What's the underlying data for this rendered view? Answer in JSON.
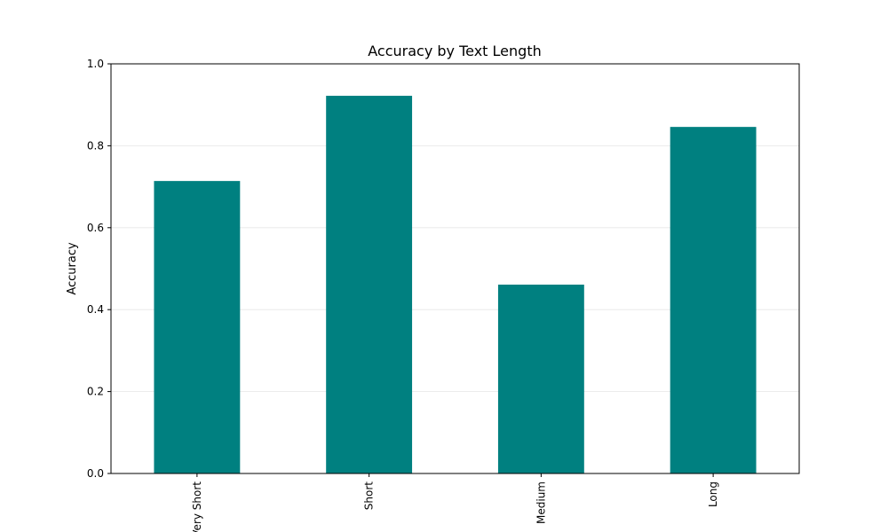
{
  "chart_data": {
    "type": "bar",
    "title": "Accuracy by Text Length",
    "xlabel": "",
    "ylabel": "Accuracy",
    "categories": [
      "Very Short",
      "Short",
      "Medium",
      "Long"
    ],
    "values": [
      0.714,
      0.922,
      0.461,
      0.846
    ],
    "ylim": [
      0,
      1.0
    ],
    "yticks": [
      "0.0",
      "0.2",
      "0.4",
      "0.6",
      "0.8",
      "1.0"
    ],
    "grid": true,
    "bar_color": "#008080"
  }
}
